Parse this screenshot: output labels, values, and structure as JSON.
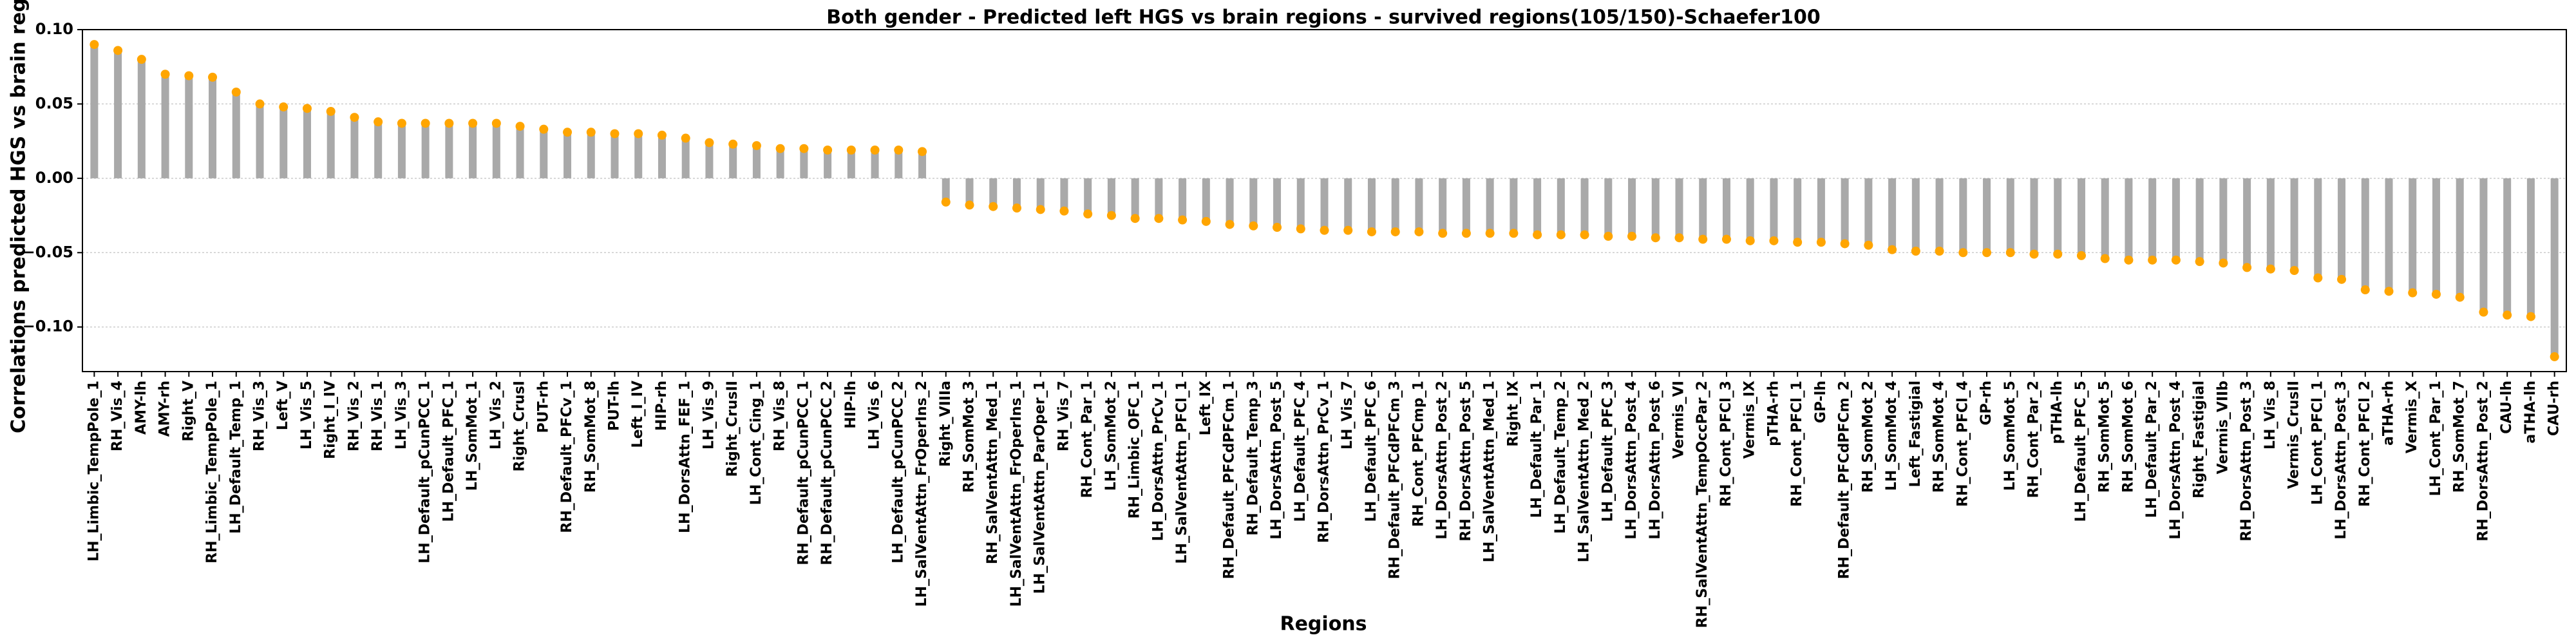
{
  "chart_data": {
    "type": "lollipop",
    "title": "Both gender - Predicted left HGS vs brain regions - survived regions(105/150)-Schaefer100",
    "x_label": "Regions",
    "y_label": "Correlations predicted HGS vs brain regions",
    "categories": [
      "LH_Limbic_TempPole_1",
      "RH_Vis_4",
      "AMY-lh",
      "AMY-rh",
      "Right_V",
      "RH_Limbic_TempPole_1",
      "LH_Default_Temp_1",
      "RH_Vis_3",
      "Left_V",
      "LH_Vis_5",
      "Right_I_IV",
      "RH_Vis_2",
      "RH_Vis_1",
      "LH_Vis_3",
      "LH_Default_pCunPCC_1",
      "LH_Default_PFC_1",
      "LH_SomMot_1",
      "LH_Vis_2",
      "Right_CrusI",
      "PUT-rh",
      "RH_Default_PFCv_1",
      "RH_SomMot_8",
      "PUT-lh",
      "Left_I_IV",
      "HIP-rh",
      "LH_DorsAttn_FEF_1",
      "LH_Vis_9",
      "Right_CrusII",
      "LH_Cont_Cing_1",
      "RH_Vis_8",
      "RH_Default_pCunPCC_1",
      "RH_Default_pCunPCC_2",
      "HIP-lh",
      "LH_Vis_6",
      "LH_Default_pCunPCC_2",
      "LH_SalVentAttn_FrOperIns_2",
      "Right_VIIIa",
      "RH_SomMot_3",
      "RH_SalVentAttn_Med_1",
      "LH_SalVentAttn_FrOperIns_1",
      "LH_SalVentAttn_ParOper_1",
      "RH_Vis_7",
      "RH_Cont_Par_1",
      "LH_SomMot_2",
      "RH_Limbic_OFC_1",
      "LH_DorsAttn_PrCv_1",
      "LH_SalVentAttn_PFCl_1",
      "Left_IX",
      "RH_Default_PFCdPFCm_1",
      "RH_Default_Temp_3",
      "LH_DorsAttn_Post_5",
      "LH_Default_PFC_4",
      "RH_DorsAttn_PrCv_1",
      "LH_Vis_7",
      "LH_Default_PFC_6",
      "RH_Default_PFCdPFCm_3",
      "RH_Cont_PFCmp_1",
      "LH_DorsAttn_Post_2",
      "RH_DorsAttn_Post_5",
      "LH_SalVentAttn_Med_1",
      "Right_IX",
      "LH_Default_Par_1",
      "LH_Default_Temp_2",
      "LH_SalVentAttn_Med_2",
      "LH_Default_PFC_3",
      "LH_DorsAttn_Post_4",
      "LH_DorsAttn_Post_6",
      "Vermis_VI",
      "RH_SalVentAttn_TempOccPar_2",
      "RH_Cont_PFCl_3",
      "Vermis_IX",
      "pTHA-rh",
      "RH_Cont_PFCl_1",
      "GP-lh",
      "RH_Default_PFCdPFCm_2",
      "RH_SomMot_2",
      "LH_SomMot_4",
      "Left_Fastigial",
      "RH_SomMot_4",
      "RH_Cont_PFCl_4",
      "GP-rh",
      "LH_SomMot_5",
      "RH_Cont_Par_2",
      "pTHA-lh",
      "LH_Default_PFC_5",
      "RH_SomMot_5",
      "RH_SomMot_6",
      "LH_Default_Par_2",
      "LH_DorsAttn_Post_4",
      "Right_Fastigial",
      "Vermis_VIIb",
      "RH_DorsAttn_Post_3",
      "LH_Vis_8",
      "Vermis_CrusII",
      "LH_Cont_PFCl_1",
      "LH_DorsAttn_Post_3",
      "RH_Cont_PFCl_2",
      "aTHA-rh",
      "Vermis_X",
      "LH_Cont_Par_1",
      "RH_SomMot_7",
      "RH_DorsAttn_Post_2",
      "CAU-lh",
      "aTHA-lh",
      "CAU-rh"
    ],
    "values": [
      0.09,
      0.086,
      0.08,
      0.07,
      0.069,
      0.068,
      0.058,
      0.05,
      0.048,
      0.047,
      0.045,
      0.041,
      0.038,
      0.037,
      0.037,
      0.037,
      0.037,
      0.037,
      0.035,
      0.033,
      0.031,
      0.031,
      0.03,
      0.03,
      0.029,
      0.027,
      0.024,
      0.023,
      0.022,
      0.02,
      0.02,
      0.019,
      0.019,
      0.019,
      0.019,
      0.018,
      -0.016,
      -0.018,
      -0.019,
      -0.02,
      -0.021,
      -0.022,
      -0.024,
      -0.025,
      -0.027,
      -0.027,
      -0.028,
      -0.029,
      -0.031,
      -0.032,
      -0.033,
      -0.034,
      -0.035,
      -0.035,
      -0.036,
      -0.036,
      -0.036,
      -0.037,
      -0.037,
      -0.037,
      -0.037,
      -0.038,
      -0.038,
      -0.038,
      -0.039,
      -0.039,
      -0.04,
      -0.04,
      -0.041,
      -0.041,
      -0.042,
      -0.042,
      -0.043,
      -0.043,
      -0.044,
      -0.045,
      -0.048,
      -0.049,
      -0.049,
      -0.05,
      -0.05,
      -0.05,
      -0.051,
      -0.051,
      -0.052,
      -0.054,
      -0.055,
      -0.055,
      -0.055,
      -0.056,
      -0.057,
      -0.06,
      -0.061,
      -0.062,
      -0.067,
      -0.068,
      -0.075,
      -0.076,
      -0.077,
      -0.078,
      -0.08,
      -0.09,
      -0.092,
      -0.093,
      -0.12
    ],
    "stem_color": "#a9a9a9",
    "marker_color": "#ffa500",
    "ylim": [
      -0.13,
      0.1
    ],
    "yticks": [
      {
        "value": 0.1,
        "label": "0.10"
      },
      0.05,
      {
        "value": 0,
        "label": "0.00"
      },
      {
        "value": -0.05,
        "label": "−0.05"
      },
      {
        "value": -0.1,
        "label": "−0.10"
      }
    ],
    "grid": true
  }
}
